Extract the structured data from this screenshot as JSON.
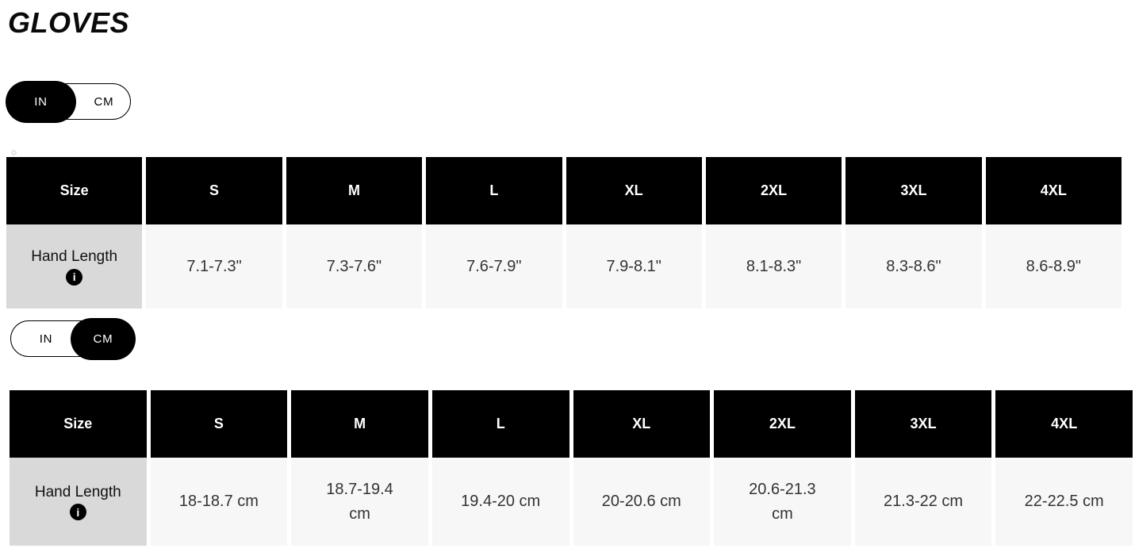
{
  "page": {
    "title": "GLOVES"
  },
  "unit_toggle": {
    "in_label": "IN",
    "cm_label": "CM"
  },
  "toggle_top": {
    "selected": "IN"
  },
  "toggle_bottom": {
    "selected": "CM"
  },
  "table": {
    "columns": [
      "Size",
      "S",
      "M",
      "L",
      "XL",
      "2XL",
      "3XL",
      "4XL"
    ],
    "inches": {
      "row_label": "Hand Length",
      "values": [
        "7.1-7.3\"",
        "7.3-7.6\"",
        "7.6-7.9\"",
        "7.9-8.1\"",
        "8.1-8.3\"",
        "8.3-8.6\"",
        "8.6-8.9\""
      ]
    },
    "centimeters": {
      "row_label": "Hand Length",
      "values": [
        "18-18.7 cm",
        "18.7-19.4\ncm",
        "19.4-20 cm",
        "20-20.6 cm",
        "20.6-21.3\ncm",
        "21.3-22 cm",
        "22-22.5 cm"
      ]
    }
  },
  "icons": {
    "info": "i"
  },
  "colors": {
    "header_bg": "#000000",
    "header_text": "#ffffff",
    "label_cell_bg": "#d9d9d9",
    "value_cell_bg": "#f7f7f7",
    "accent": "#000000"
  }
}
